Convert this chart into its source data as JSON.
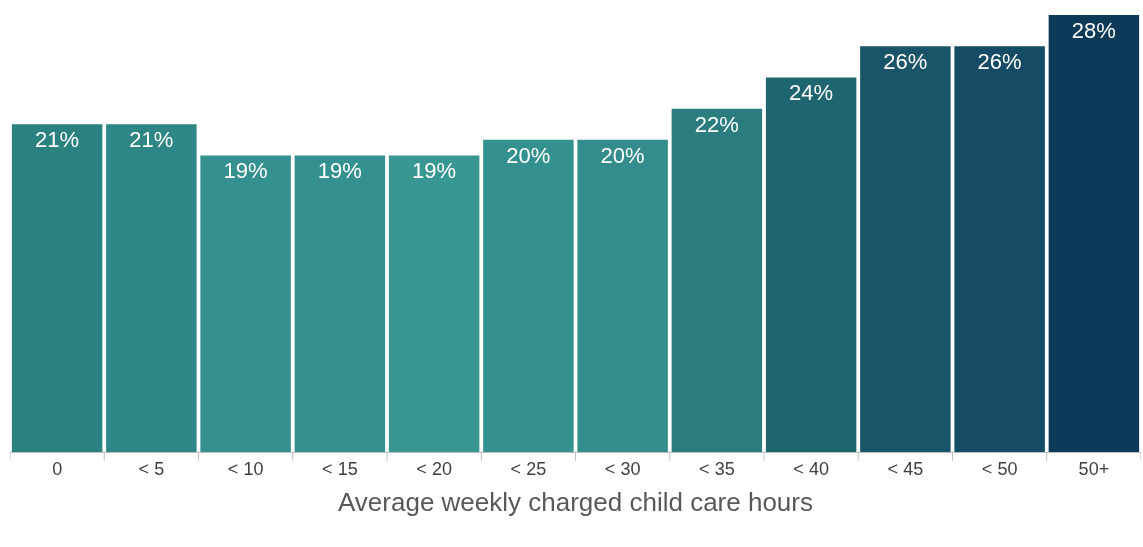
{
  "chart_data": {
    "type": "bar",
    "xlabel": "Average weekly charged child care hours",
    "categories": [
      "0",
      "< 5",
      "< 10",
      "< 15",
      "< 20",
      "< 25",
      "< 30",
      "< 35",
      "< 40",
      "< 45",
      "< 50",
      "50+"
    ],
    "values": [
      21,
      21,
      19,
      19,
      19,
      20,
      20,
      22,
      24,
      26,
      26,
      28
    ],
    "value_labels": [
      "21%",
      "21%",
      "19%",
      "19%",
      "19%",
      "20%",
      "20%",
      "22%",
      "24%",
      "26%",
      "26%",
      "28%"
    ],
    "colors": [
      "#2b8080",
      "#2e8686",
      "#35918f",
      "#35918f",
      "#389693",
      "#35918f",
      "#348d8c",
      "#2a7c7e",
      "#1f6570",
      "#1a5468",
      "#154b65",
      "#0d3a58"
    ]
  }
}
